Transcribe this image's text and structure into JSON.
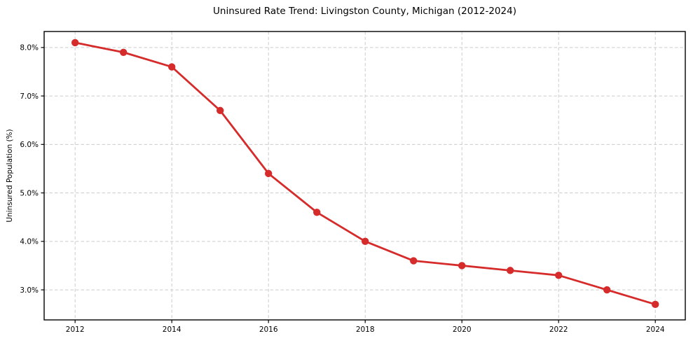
{
  "chart_data": {
    "type": "line",
    "title": "Uninsured Rate Trend: Livingston County, Michigan (2012-2024)",
    "xlabel": "",
    "ylabel": "Uninsured Population (%)",
    "x": [
      2012,
      2013,
      2014,
      2015,
      2016,
      2017,
      2018,
      2019,
      2020,
      2021,
      2022,
      2023,
      2024
    ],
    "values": [
      8.1,
      7.9,
      7.6,
      6.7,
      5.4,
      4.6,
      4.0,
      3.6,
      3.5,
      3.4,
      3.3,
      3.0,
      2.7
    ],
    "xlim": [
      2011.36,
      2024.62
    ],
    "ylim": [
      2.38,
      8.33
    ],
    "x_ticks": [
      2012,
      2014,
      2016,
      2018,
      2020,
      2022,
      2024
    ],
    "x_tick_labels": [
      "2012",
      "2014",
      "2016",
      "2018",
      "2020",
      "2022",
      "2024"
    ],
    "y_ticks": [
      3,
      4,
      5,
      6,
      7,
      8
    ],
    "y_tick_labels": [
      "3.0%",
      "4.0%",
      "5.0%",
      "6.0%",
      "7.0%",
      "8.0%"
    ],
    "grid": true,
    "legend_position": "none",
    "line_color": "#d62b2b",
    "grid_color": "#cccccc",
    "frame_color": "#000000",
    "text_color": "#000000"
  }
}
